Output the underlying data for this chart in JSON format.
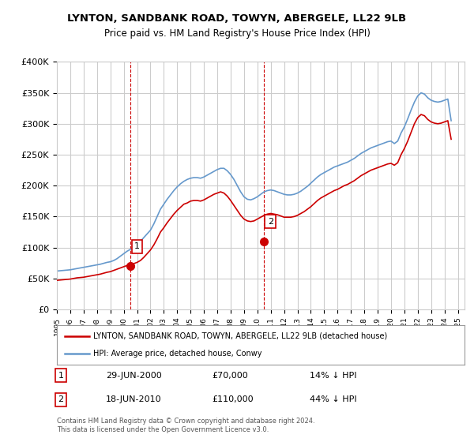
{
  "title": "LYNTON, SANDBANK ROAD, TOWYN, ABERGELE, LL22 9LB",
  "subtitle": "Price paid vs. HM Land Registry's House Price Index (HPI)",
  "ylabel_ticks": [
    "£0",
    "£50K",
    "£100K",
    "£150K",
    "£200K",
    "£250K",
    "£300K",
    "£350K",
    "£400K"
  ],
  "ylim": [
    0,
    400000
  ],
  "xlim_start": 1995.0,
  "xlim_end": 2025.5,
  "sale1_date": 2000.49,
  "sale1_price": 70000,
  "sale1_label": "1",
  "sale2_date": 2010.46,
  "sale2_price": 110000,
  "sale2_label": "2",
  "legend_red_label": "LYNTON, SANDBANK ROAD, TOWYN, ABERGELE, LL22 9LB (detached house)",
  "legend_blue_label": "HPI: Average price, detached house, Conwy",
  "table_rows": [
    [
      "1",
      "29-JUN-2000",
      "£70,000",
      "14% ↓ HPI"
    ],
    [
      "2",
      "18-JUN-2010",
      "£110,000",
      "44% ↓ HPI"
    ]
  ],
  "footnote": "Contains HM Land Registry data © Crown copyright and database right 2024.\nThis data is licensed under the Open Government Licence v3.0.",
  "red_color": "#cc0000",
  "blue_color": "#6699cc",
  "vline_color": "#cc0000",
  "bg_color": "#ffffff",
  "grid_color": "#cccccc",
  "hpi_data": {
    "years": [
      1995.0,
      1995.25,
      1995.5,
      1995.75,
      1996.0,
      1996.25,
      1996.5,
      1996.75,
      1997.0,
      1997.25,
      1997.5,
      1997.75,
      1998.0,
      1998.25,
      1998.5,
      1998.75,
      1999.0,
      1999.25,
      1999.5,
      1999.75,
      2000.0,
      2000.25,
      2000.5,
      2000.75,
      2001.0,
      2001.25,
      2001.5,
      2001.75,
      2002.0,
      2002.25,
      2002.5,
      2002.75,
      2003.0,
      2003.25,
      2003.5,
      2003.75,
      2004.0,
      2004.25,
      2004.5,
      2004.75,
      2005.0,
      2005.25,
      2005.5,
      2005.75,
      2006.0,
      2006.25,
      2006.5,
      2006.75,
      2007.0,
      2007.25,
      2007.5,
      2007.75,
      2008.0,
      2008.25,
      2008.5,
      2008.75,
      2009.0,
      2009.25,
      2009.5,
      2009.75,
      2010.0,
      2010.25,
      2010.5,
      2010.75,
      2011.0,
      2011.25,
      2011.5,
      2011.75,
      2012.0,
      2012.25,
      2012.5,
      2012.75,
      2013.0,
      2013.25,
      2013.5,
      2013.75,
      2014.0,
      2014.25,
      2014.5,
      2014.75,
      2015.0,
      2015.25,
      2015.5,
      2015.75,
      2016.0,
      2016.25,
      2016.5,
      2016.75,
      2017.0,
      2017.25,
      2017.5,
      2017.75,
      2018.0,
      2018.25,
      2018.5,
      2018.75,
      2019.0,
      2019.25,
      2019.5,
      2019.75,
      2020.0,
      2020.25,
      2020.5,
      2020.75,
      2021.0,
      2021.25,
      2021.5,
      2021.75,
      2022.0,
      2022.25,
      2022.5,
      2022.75,
      2023.0,
      2023.25,
      2023.5,
      2023.75,
      2024.0,
      2024.25,
      2024.5
    ],
    "values": [
      62000,
      62500,
      63000,
      63500,
      64000,
      65000,
      66000,
      67000,
      68000,
      69000,
      70000,
      71000,
      72000,
      73000,
      74500,
      76000,
      77000,
      79000,
      82000,
      86000,
      90000,
      94000,
      97000,
      100000,
      105000,
      110000,
      116000,
      122000,
      128000,
      138000,
      150000,
      162000,
      170000,
      178000,
      185000,
      192000,
      198000,
      203000,
      207000,
      210000,
      212000,
      213000,
      213000,
      212000,
      214000,
      217000,
      220000,
      223000,
      226000,
      228000,
      228000,
      224000,
      218000,
      210000,
      200000,
      190000,
      182000,
      178000,
      177000,
      179000,
      182000,
      186000,
      190000,
      192000,
      193000,
      192000,
      190000,
      188000,
      186000,
      185000,
      185000,
      186000,
      188000,
      191000,
      195000,
      199000,
      204000,
      209000,
      214000,
      218000,
      221000,
      224000,
      227000,
      230000,
      232000,
      234000,
      236000,
      238000,
      241000,
      244000,
      248000,
      252000,
      255000,
      258000,
      261000,
      263000,
      265000,
      267000,
      269000,
      271000,
      272000,
      268000,
      272000,
      285000,
      295000,
      308000,
      322000,
      335000,
      345000,
      350000,
      348000,
      342000,
      338000,
      336000,
      335000,
      336000,
      338000,
      340000,
      305000
    ]
  },
  "red_data": {
    "years": [
      1995.0,
      1995.25,
      1995.5,
      1995.75,
      1996.0,
      1996.25,
      1996.5,
      1996.75,
      1997.0,
      1997.25,
      1997.5,
      1997.75,
      1998.0,
      1998.25,
      1998.5,
      1998.75,
      1999.0,
      1999.25,
      1999.5,
      1999.75,
      2000.0,
      2000.25,
      2000.5,
      2000.75,
      2001.0,
      2001.25,
      2001.5,
      2001.75,
      2002.0,
      2002.25,
      2002.5,
      2002.75,
      2003.0,
      2003.25,
      2003.5,
      2003.75,
      2004.0,
      2004.25,
      2004.5,
      2004.75,
      2005.0,
      2005.25,
      2005.5,
      2005.75,
      2006.0,
      2006.25,
      2006.5,
      2006.75,
      2007.0,
      2007.25,
      2007.5,
      2007.75,
      2008.0,
      2008.25,
      2008.5,
      2008.75,
      2009.0,
      2009.25,
      2009.5,
      2009.75,
      2010.0,
      2010.25,
      2010.5,
      2010.75,
      2011.0,
      2011.25,
      2011.5,
      2011.75,
      2012.0,
      2012.25,
      2012.5,
      2012.75,
      2013.0,
      2013.25,
      2013.5,
      2013.75,
      2014.0,
      2014.25,
      2014.5,
      2014.75,
      2015.0,
      2015.25,
      2015.5,
      2015.75,
      2016.0,
      2016.25,
      2016.5,
      2016.75,
      2017.0,
      2017.25,
      2017.5,
      2017.75,
      2018.0,
      2018.25,
      2018.5,
      2018.75,
      2019.0,
      2019.25,
      2019.5,
      2019.75,
      2020.0,
      2020.25,
      2020.5,
      2020.75,
      2021.0,
      2021.25,
      2021.5,
      2021.75,
      2022.0,
      2022.25,
      2022.5,
      2022.75,
      2023.0,
      2023.25,
      2023.5,
      2023.75,
      2024.0,
      2024.25,
      2024.5
    ],
    "values": [
      47000,
      47500,
      48000,
      48500,
      49000,
      50000,
      51000,
      51500,
      52000,
      53000,
      54000,
      55000,
      56000,
      57000,
      58500,
      60000,
      61000,
      63000,
      65000,
      67000,
      69000,
      71000,
      72000,
      74000,
      76000,
      79000,
      84000,
      90000,
      96000,
      104000,
      114000,
      125000,
      132000,
      140000,
      147000,
      154000,
      160000,
      165000,
      170000,
      172000,
      175000,
      176000,
      176000,
      175000,
      177000,
      180000,
      183000,
      186000,
      188000,
      190000,
      188000,
      183000,
      176000,
      168000,
      160000,
      152000,
      146000,
      143000,
      142000,
      143000,
      146000,
      149000,
      152000,
      154000,
      155000,
      154000,
      153000,
      151000,
      149000,
      149000,
      149000,
      150000,
      152000,
      155000,
      158000,
      162000,
      166000,
      171000,
      176000,
      180000,
      183000,
      186000,
      189000,
      192000,
      194000,
      197000,
      200000,
      202000,
      205000,
      208000,
      212000,
      216000,
      219000,
      222000,
      225000,
      227000,
      229000,
      231000,
      233000,
      235000,
      236000,
      233000,
      237000,
      250000,
      260000,
      272000,
      286000,
      300000,
      310000,
      315000,
      313000,
      307000,
      303000,
      301000,
      300000,
      301000,
      303000,
      305000,
      275000
    ]
  }
}
